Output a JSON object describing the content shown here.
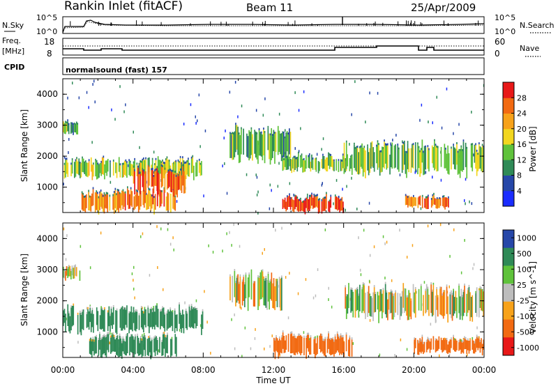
{
  "header": {
    "title": "Rankin Inlet (fitACF)",
    "beam": "Beam 11",
    "date": "25/Apr/2009"
  },
  "noise_panel": {
    "left_label": "N.Sky",
    "right_label": "N.Search",
    "left_ticks": [
      "10^5",
      "10^0"
    ],
    "right_ticks": [
      "10^5",
      "10^0"
    ]
  },
  "freq_panel": {
    "left_label_line1": "Freq.",
    "left_label_line2": "[MHz]",
    "right_label": "Nave",
    "left_ticks": [
      "18",
      "8"
    ],
    "right_ticks": [
      "60",
      "0"
    ]
  },
  "cpid_panel": {
    "label": "CPID",
    "mode": "normalsound (fast) 157"
  },
  "x_axis": {
    "label": "Time UT",
    "ticks": [
      "00:00",
      "04:00",
      "08:00",
      "12:00",
      "16:00",
      "20:00",
      "00:00"
    ]
  },
  "colors": {
    "power_scale": [
      "#1a2cff",
      "#2647a8",
      "#2f8a57",
      "#5fc23b",
      "#f2d61f",
      "#f7a21a",
      "#f26a12",
      "#e81818"
    ],
    "velocity_scale": [
      "#e81818",
      "#f26a12",
      "#f7a21a",
      "#bdbdbd",
      "#5fc23b",
      "#2f8a57",
      "#2647a8"
    ]
  },
  "chart_data": [
    {
      "type": "heatmap",
      "name": "power",
      "ylabel": "Slant Range [km]",
      "xlabel": "",
      "x_range": [
        "00:00",
        "24:00"
      ],
      "ylim": [
        180,
        4500
      ],
      "y_ticks": [
        "1000",
        "2000",
        "3000",
        "4000"
      ],
      "colorbar_label": "Power [dB]",
      "colorbar_ticks": [
        "4",
        "8",
        "12",
        "16",
        "20",
        "24",
        "28"
      ],
      "colorbar_range": [
        0,
        30
      ],
      "regions": [
        {
          "t": [
            0.0,
            1.0
          ],
          "range": [
            2700,
            3100
          ],
          "value": 12
        },
        {
          "t": [
            0.0,
            8.0
          ],
          "range": [
            1300,
            1900
          ],
          "value": 16
        },
        {
          "t": [
            1.0,
            6.5
          ],
          "range": [
            200,
            900
          ],
          "value": 24
        },
        {
          "t": [
            4.0,
            7.0
          ],
          "range": [
            800,
            1600
          ],
          "value": 26
        },
        {
          "t": [
            9.5,
            13.0
          ],
          "range": [
            1800,
            2900
          ],
          "value": 12
        },
        {
          "t": [
            12.5,
            16.5
          ],
          "range": [
            1500,
            2000
          ],
          "value": 14
        },
        {
          "t": [
            12.5,
            16.0
          ],
          "range": [
            200,
            700
          ],
          "value": 28
        },
        {
          "t": [
            16.0,
            24.0
          ],
          "range": [
            1400,
            2400
          ],
          "value": 14
        },
        {
          "t": [
            19.5,
            22.0
          ],
          "range": [
            300,
            700
          ],
          "value": 26
        }
      ]
    },
    {
      "type": "heatmap",
      "name": "velocity",
      "ylabel": "Slant Range [km]",
      "xlabel": "Time UT",
      "x_range": [
        "00:00",
        "24:00"
      ],
      "ylim": [
        180,
        4500
      ],
      "y_ticks": [
        "1000",
        "2000",
        "3000",
        "4000"
      ],
      "colorbar_label": "Velocity [m s^-1]",
      "colorbar_ticks": [
        "1000",
        "500",
        "100",
        "25",
        "-25",
        "-100",
        "-500",
        "-1000"
      ],
      "colorbar_range": [
        -1000,
        1000
      ],
      "regions": [
        {
          "t": [
            0.0,
            1.0
          ],
          "range": [
            2700,
            3100
          ],
          "value": 0
        },
        {
          "t": [
            0.0,
            8.0
          ],
          "range": [
            1000,
            1800
          ],
          "value": 300
        },
        {
          "t": [
            1.5,
            6.5
          ],
          "range": [
            200,
            900
          ],
          "value": 300
        },
        {
          "t": [
            9.5,
            12.5
          ],
          "range": [
            1800,
            2900
          ],
          "value": 0
        },
        {
          "t": [
            12.0,
            16.5
          ],
          "range": [
            200,
            900
          ],
          "value": -250
        },
        {
          "t": [
            16.0,
            24.0
          ],
          "range": [
            1400,
            2400
          ],
          "value": 0
        },
        {
          "t": [
            20.0,
            24.0
          ],
          "range": [
            300,
            800
          ],
          "value": -250
        }
      ]
    }
  ]
}
